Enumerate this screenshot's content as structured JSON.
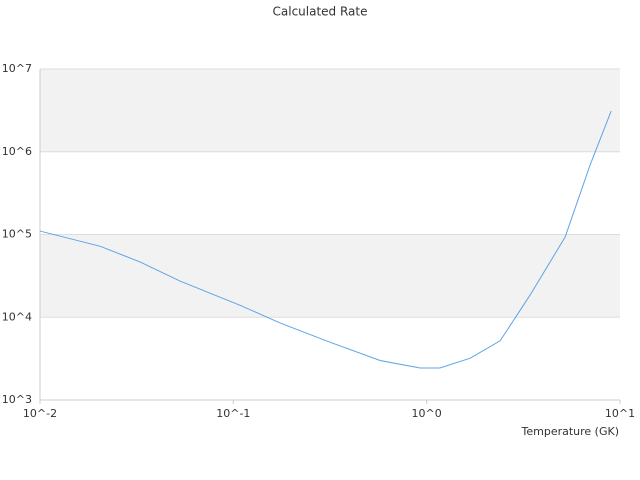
{
  "chart_data": {
    "type": "line",
    "title": "Calculated Rate",
    "x_label": "Temperature (GK)",
    "x": [
      0.01,
      0.0205,
      0.0329,
      0.053,
      0.108,
      0.175,
      0.316,
      0.574,
      0.925,
      1.17,
      1.68,
      2.4,
      3.43,
      5.2,
      7.0,
      9.0
    ],
    "values": [
      110000,
      72000,
      46600,
      27400,
      14000,
      8500,
      5000,
      3000,
      2440,
      2440,
      3200,
      5200,
      18600,
      93000,
      690000,
      3100000
    ],
    "color": "#5fa3e6",
    "xscale": "log",
    "yscale": "log",
    "grid": true,
    "xlim": [
      0.01,
      10
    ],
    "ylim": [
      1000,
      10000000
    ],
    "xticks": [
      {
        "value": 0.01,
        "label": "10^-2"
      },
      {
        "value": 0.1,
        "label": "10^-1"
      },
      {
        "value": 1,
        "label": "10^0"
      },
      {
        "value": 10,
        "label": "10^1"
      }
    ],
    "yticks": [
      {
        "value": 1000,
        "label": "10^3"
      },
      {
        "value": 10000,
        "label": "10^4"
      },
      {
        "value": 100000,
        "label": "10^5"
      },
      {
        "value": 1000000,
        "label": "10^6"
      },
      {
        "value": 10000000,
        "label": "10^7"
      }
    ]
  }
}
